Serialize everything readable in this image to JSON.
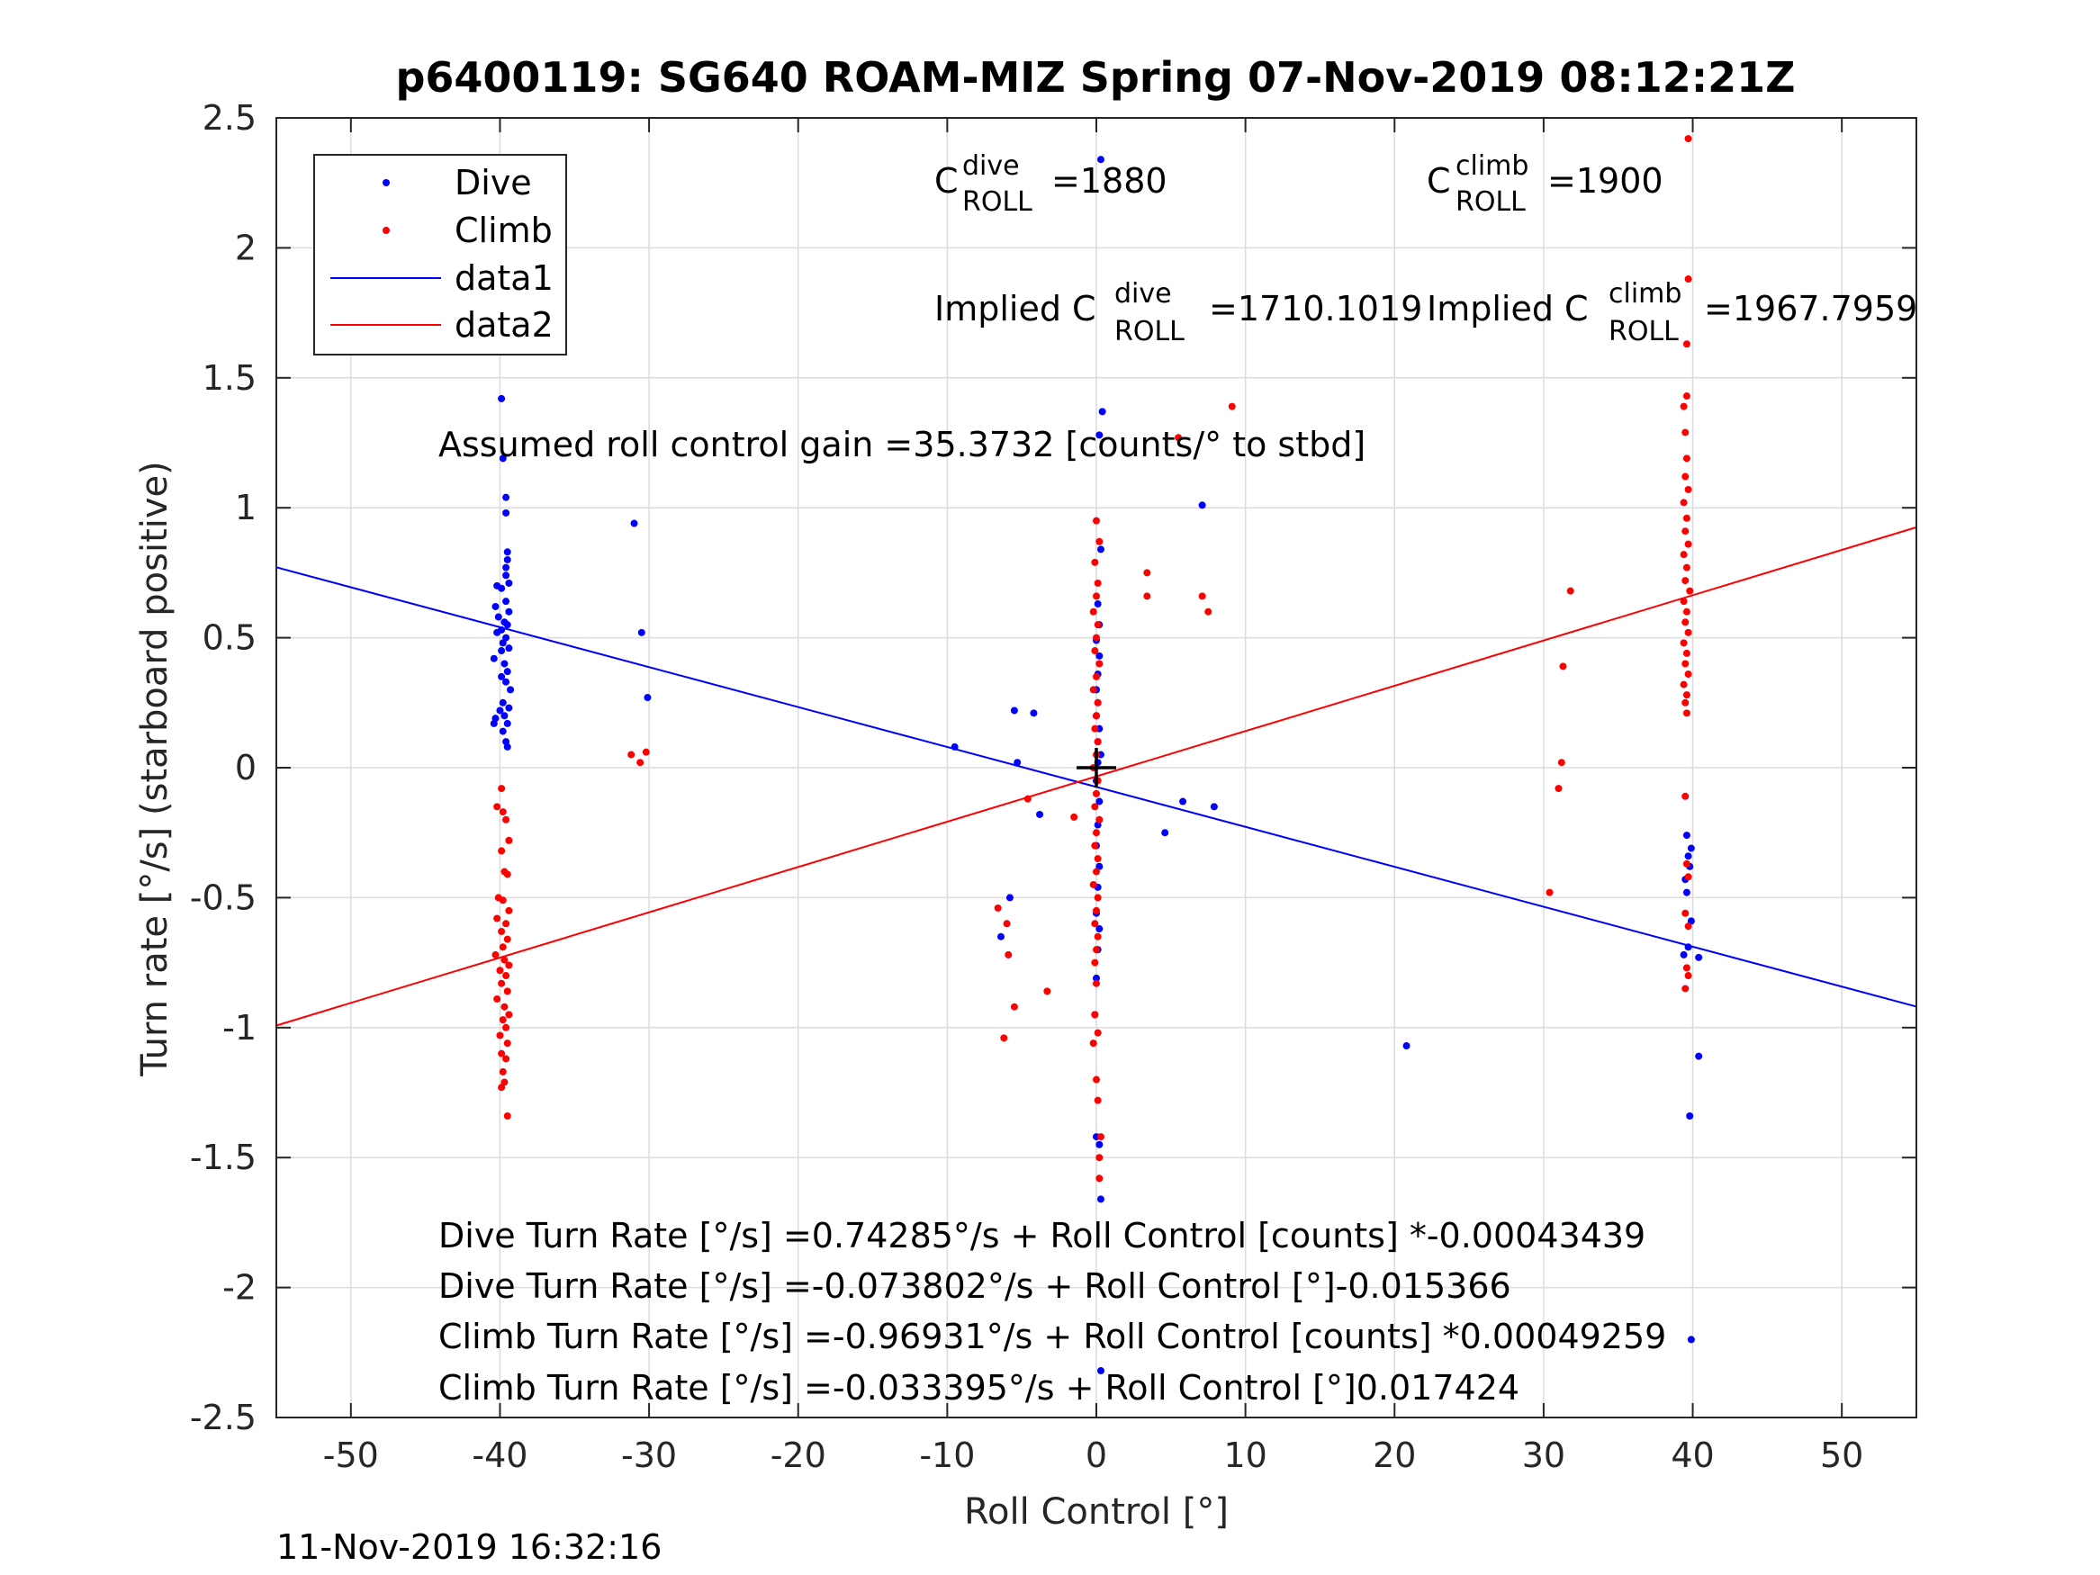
{
  "footer": {
    "timestamp": "11-Nov-2019 16:32:16"
  },
  "chart_data": {
    "type": "scatter",
    "title": "p6400119: SG640 ROAM-MIZ Spring 07-Nov-2019 08:12:21Z",
    "xlabel": "Roll Control [°]",
    "ylabel": "Turn rate [°/s] (starboard positive)",
    "xlim": [
      -55,
      55
    ],
    "ylim": [
      -2.5,
      2.5
    ],
    "xticks": [
      -50,
      -40,
      -30,
      -20,
      -10,
      0,
      10,
      20,
      30,
      40,
      50
    ],
    "yticks": [
      -2.5,
      -2,
      -1.5,
      -1,
      -0.5,
      0,
      0.5,
      1,
      1.5,
      2,
      2.5
    ],
    "xtick_labels": [
      "-50",
      "-40",
      "-30",
      "-20",
      "-10",
      "0",
      "10",
      "20",
      "30",
      "40",
      "50"
    ],
    "ytick_labels": [
      "-2.5",
      "-2",
      "-1.5",
      "-1",
      "-0.5",
      "0",
      "0.5",
      "1",
      "1.5",
      "2",
      "2.5"
    ],
    "grid": true,
    "legend_position": "top-left",
    "legend": [
      {
        "label": "Dive",
        "color": "#0000ff",
        "style": "marker"
      },
      {
        "label": "Climb",
        "color": "#ff0000",
        "style": "marker"
      },
      {
        "label": "data1",
        "color": "#0000ff",
        "style": "line"
      },
      {
        "label": "data2",
        "color": "#ff0000",
        "style": "line"
      }
    ],
    "series": [
      {
        "name": "Dive",
        "kind": "scatter",
        "color": "#0000ff",
        "points": [
          [
            -39.9,
            1.42
          ],
          [
            -39.8,
            1.19
          ],
          [
            -39.6,
            1.04
          ],
          [
            -39.6,
            0.98
          ],
          [
            -39.5,
            0.83
          ],
          [
            -39.5,
            0.8
          ],
          [
            -39.6,
            0.77
          ],
          [
            -39.6,
            0.74
          ],
          [
            -39.4,
            0.71
          ],
          [
            -40.2,
            0.7
          ],
          [
            -39.9,
            0.69
          ],
          [
            -40.3,
            0.62
          ],
          [
            -39.6,
            0.64
          ],
          [
            -39.4,
            0.6
          ],
          [
            -40.1,
            0.58
          ],
          [
            -39.7,
            0.56
          ],
          [
            -39.5,
            0.55
          ],
          [
            -39.9,
            0.53
          ],
          [
            -40.2,
            0.52
          ],
          [
            -39.6,
            0.5
          ],
          [
            -39.8,
            0.48
          ],
          [
            -39.4,
            0.46
          ],
          [
            -39.9,
            0.45
          ],
          [
            -40.4,
            0.42
          ],
          [
            -39.7,
            0.4
          ],
          [
            -39.5,
            0.37
          ],
          [
            -39.9,
            0.35
          ],
          [
            -39.6,
            0.33
          ],
          [
            -39.3,
            0.3
          ],
          [
            -39.8,
            0.25
          ],
          [
            -39.4,
            0.23
          ],
          [
            -40.0,
            0.22
          ],
          [
            -39.7,
            0.2
          ],
          [
            -40.3,
            0.19
          ],
          [
            -39.5,
            0.17
          ],
          [
            -39.8,
            0.14
          ],
          [
            -40.4,
            0.17
          ],
          [
            -39.6,
            0.1
          ],
          [
            -39.5,
            0.08
          ],
          [
            -31.0,
            0.94
          ],
          [
            -30.5,
            0.52
          ],
          [
            -30.1,
            0.27
          ],
          [
            -9.5,
            0.08
          ],
          [
            -5.5,
            0.22
          ],
          [
            -4.2,
            0.21
          ],
          [
            -5.3,
            0.02
          ],
          [
            -3.8,
            -0.18
          ],
          [
            -5.8,
            -0.5
          ],
          [
            -6.4,
            -0.65
          ],
          [
            0.3,
            2.34
          ],
          [
            0.4,
            1.37
          ],
          [
            0.2,
            1.28
          ],
          [
            0.3,
            0.84
          ],
          [
            0.1,
            0.63
          ],
          [
            0.2,
            0.55
          ],
          [
            0.0,
            0.49
          ],
          [
            0.2,
            0.43
          ],
          [
            0.1,
            0.36
          ],
          [
            0.0,
            0.3
          ],
          [
            0.1,
            0.25
          ],
          [
            0.0,
            0.2
          ],
          [
            0.2,
            0.15
          ],
          [
            0.1,
            0.1
          ],
          [
            0.3,
            0.05
          ],
          [
            0.1,
            0.02
          ],
          [
            0.0,
            -0.05
          ],
          [
            0.2,
            -0.13
          ],
          [
            0.1,
            -0.22
          ],
          [
            0.0,
            -0.3
          ],
          [
            0.2,
            -0.38
          ],
          [
            0.1,
            -0.46
          ],
          [
            0.0,
            -0.56
          ],
          [
            0.2,
            -0.62
          ],
          [
            0.1,
            -0.7
          ],
          [
            0.0,
            -0.81
          ],
          [
            -0.1,
            -0.95
          ],
          [
            0.0,
            -1.42
          ],
          [
            0.2,
            -1.45
          ],
          [
            0.3,
            -1.66
          ],
          [
            0.3,
            -2.32
          ],
          [
            5.8,
            -0.13
          ],
          [
            4.6,
            -0.25
          ],
          [
            7.1,
            1.01
          ],
          [
            7.9,
            -0.15
          ],
          [
            20.8,
            -1.07
          ],
          [
            39.6,
            -0.26
          ],
          [
            39.9,
            -0.31
          ],
          [
            39.7,
            -0.34
          ],
          [
            39.8,
            -0.38
          ],
          [
            39.5,
            -0.43
          ],
          [
            39.6,
            -0.48
          ],
          [
            39.9,
            -0.59
          ],
          [
            39.7,
            -0.69
          ],
          [
            39.4,
            -0.72
          ],
          [
            40.4,
            -0.73
          ],
          [
            40.4,
            -1.11
          ],
          [
            39.8,
            -1.34
          ],
          [
            39.9,
            -2.2
          ]
        ]
      },
      {
        "name": "Climb",
        "kind": "scatter",
        "color": "#ff0000",
        "points": [
          [
            -39.9,
            -0.08
          ],
          [
            -40.2,
            -0.15
          ],
          [
            -39.8,
            -0.17
          ],
          [
            -39.6,
            -0.2
          ],
          [
            -39.4,
            -0.28
          ],
          [
            -39.9,
            -0.32
          ],
          [
            -39.7,
            -0.4
          ],
          [
            -39.5,
            -0.41
          ],
          [
            -40.1,
            -0.5
          ],
          [
            -39.8,
            -0.51
          ],
          [
            -39.4,
            -0.55
          ],
          [
            -40.2,
            -0.58
          ],
          [
            -39.6,
            -0.6
          ],
          [
            -39.9,
            -0.63
          ],
          [
            -39.5,
            -0.66
          ],
          [
            -39.8,
            -0.69
          ],
          [
            -40.3,
            -0.72
          ],
          [
            -39.7,
            -0.74
          ],
          [
            -39.4,
            -0.76
          ],
          [
            -40.0,
            -0.78
          ],
          [
            -39.6,
            -0.8
          ],
          [
            -39.9,
            -0.83
          ],
          [
            -39.5,
            -0.86
          ],
          [
            -40.2,
            -0.89
          ],
          [
            -39.7,
            -0.92
          ],
          [
            -39.4,
            -0.95
          ],
          [
            -39.8,
            -0.97
          ],
          [
            -39.6,
            -1.0
          ],
          [
            -40.0,
            -1.03
          ],
          [
            -39.5,
            -1.06
          ],
          [
            -39.9,
            -1.1
          ],
          [
            -39.6,
            -1.12
          ],
          [
            -39.8,
            -1.17
          ],
          [
            -39.7,
            -1.21
          ],
          [
            -39.9,
            -1.23
          ],
          [
            -39.5,
            -1.34
          ],
          [
            -31.2,
            0.05
          ],
          [
            -30.6,
            0.02
          ],
          [
            -30.2,
            0.06
          ],
          [
            -6.6,
            -0.54
          ],
          [
            -6.0,
            -0.6
          ],
          [
            -5.9,
            -0.72
          ],
          [
            -5.5,
            -0.92
          ],
          [
            -6.2,
            -1.04
          ],
          [
            -3.3,
            -0.86
          ],
          [
            -4.6,
            -0.12
          ],
          [
            -1.5,
            -0.19
          ],
          [
            0.0,
            0.95
          ],
          [
            0.2,
            0.87
          ],
          [
            -0.1,
            0.79
          ],
          [
            0.1,
            0.71
          ],
          [
            0.0,
            0.66
          ],
          [
            -0.2,
            0.6
          ],
          [
            0.1,
            0.55
          ],
          [
            0.0,
            0.5
          ],
          [
            -0.1,
            0.45
          ],
          [
            0.2,
            0.4
          ],
          [
            0.0,
            0.35
          ],
          [
            -0.2,
            0.3
          ],
          [
            0.1,
            0.25
          ],
          [
            0.0,
            0.2
          ],
          [
            -0.1,
            0.15
          ],
          [
            0.1,
            0.1
          ],
          [
            0.0,
            0.05
          ],
          [
            -0.2,
            0.0
          ],
          [
            0.1,
            -0.05
          ],
          [
            0.0,
            -0.1
          ],
          [
            -0.1,
            -0.15
          ],
          [
            0.2,
            -0.2
          ],
          [
            0.0,
            -0.25
          ],
          [
            -0.1,
            -0.3
          ],
          [
            0.1,
            -0.35
          ],
          [
            0.0,
            -0.4
          ],
          [
            -0.2,
            -0.45
          ],
          [
            0.1,
            -0.5
          ],
          [
            0.0,
            -0.55
          ],
          [
            -0.1,
            -0.6
          ],
          [
            0.1,
            -0.65
          ],
          [
            0.0,
            -0.7
          ],
          [
            -0.1,
            -0.75
          ],
          [
            0.0,
            -0.83
          ],
          [
            -0.1,
            -0.95
          ],
          [
            0.1,
            -1.02
          ],
          [
            -0.2,
            -1.06
          ],
          [
            0.0,
            -1.2
          ],
          [
            0.1,
            -1.28
          ],
          [
            0.3,
            -1.42
          ],
          [
            0.2,
            -1.5
          ],
          [
            0.2,
            -1.58
          ],
          [
            3.4,
            0.75
          ],
          [
            3.4,
            0.66
          ],
          [
            5.5,
            1.27
          ],
          [
            9.1,
            1.39
          ],
          [
            7.1,
            0.66
          ],
          [
            7.5,
            0.6
          ],
          [
            30.4,
            -0.48
          ],
          [
            31.0,
            -0.08
          ],
          [
            31.2,
            0.02
          ],
          [
            31.3,
            0.39
          ],
          [
            31.8,
            0.68
          ],
          [
            39.7,
            2.42
          ],
          [
            39.7,
            1.88
          ],
          [
            39.6,
            1.63
          ],
          [
            39.6,
            1.43
          ],
          [
            39.4,
            1.39
          ],
          [
            39.5,
            1.29
          ],
          [
            39.6,
            1.19
          ],
          [
            39.5,
            1.12
          ],
          [
            39.7,
            1.07
          ],
          [
            39.4,
            1.02
          ],
          [
            39.6,
            0.96
          ],
          [
            39.5,
            0.91
          ],
          [
            39.7,
            0.86
          ],
          [
            39.4,
            0.82
          ],
          [
            39.6,
            0.77
          ],
          [
            39.5,
            0.72
          ],
          [
            39.8,
            0.68
          ],
          [
            39.4,
            0.64
          ],
          [
            39.6,
            0.6
          ],
          [
            39.5,
            0.56
          ],
          [
            39.7,
            0.52
          ],
          [
            39.4,
            0.48
          ],
          [
            39.6,
            0.44
          ],
          [
            39.5,
            0.4
          ],
          [
            39.7,
            0.36
          ],
          [
            39.4,
            0.32
          ],
          [
            39.6,
            0.28
          ],
          [
            39.5,
            0.25
          ],
          [
            39.6,
            0.21
          ],
          [
            39.5,
            -0.11
          ],
          [
            39.6,
            -0.37
          ],
          [
            39.7,
            -0.42
          ],
          [
            39.5,
            -0.56
          ],
          [
            39.7,
            -0.61
          ],
          [
            39.6,
            -0.77
          ],
          [
            39.7,
            -0.8
          ],
          [
            39.5,
            -0.85
          ]
        ]
      },
      {
        "name": "data1",
        "kind": "line",
        "color": "#0000ff",
        "x": [
          -55,
          55
        ],
        "y": [
          0.771,
          -0.919
        ]
      },
      {
        "name": "data2",
        "kind": "line",
        "color": "#ff0000",
        "x": [
          -55,
          55
        ],
        "y": [
          -0.992,
          0.925
        ]
      }
    ],
    "center_marker": {
      "x": 0,
      "y": 0,
      "symbol": "+"
    },
    "annotations": {
      "c_roll_dive": {
        "base": "C",
        "sup": "dive",
        "sub": "ROLL",
        "value": "=1880"
      },
      "c_roll_climb": {
        "base": "C",
        "sup": "climb",
        "sub": "ROLL",
        "value": "=1900"
      },
      "implied_dive": {
        "base": "Implied C",
        "sup": "dive",
        "sub": "ROLL",
        "value": "=1710.1019"
      },
      "implied_climb": {
        "base": "Implied C",
        "sup": "climb",
        "sub": "ROLL",
        "value": "=1967.7959"
      },
      "gain": "Assumed roll control gain =35.3732 [counts/° to stbd]",
      "eq1": "Dive Turn Rate [°/s] =0.74285°/s + Roll Control [counts] *-0.00043439",
      "eq2": "Dive Turn Rate [°/s] =-0.073802°/s + Roll Control [°]-0.015366",
      "eq3": "Climb Turn Rate [°/s] =-0.96931°/s + Roll Control [counts] *0.00049259",
      "eq4": "Climb Turn Rate [°/s] =-0.033395°/s + Roll Control [°]0.017424"
    }
  }
}
